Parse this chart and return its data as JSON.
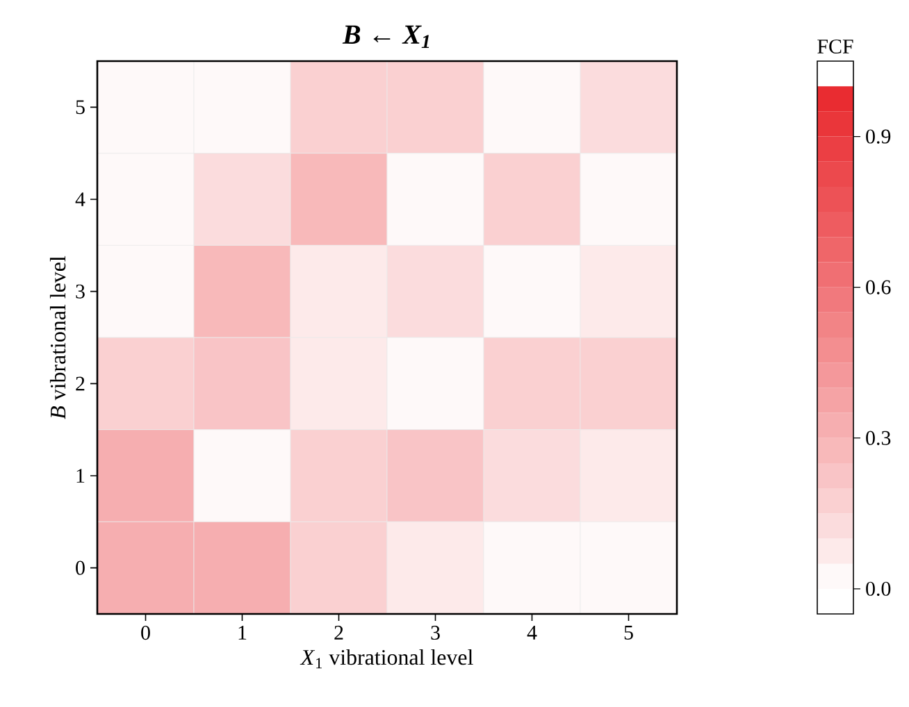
{
  "chart_data": {
    "type": "heatmap",
    "title": "B ← X$_{1}$",
    "xlabel": "*X*$_{1}$ vibrational level",
    "ylabel": "*B* vibrational level",
    "clabel": "FCF",
    "categories": [
      "0",
      "1",
      "2",
      "3",
      "4",
      "5"
    ],
    "y_categories": [
      "5",
      "4",
      "3",
      "2",
      "1",
      "0"
    ],
    "cells": [
      [
        0.02,
        0.02,
        0.15,
        0.15,
        0.02,
        0.12
      ],
      [
        0.02,
        0.12,
        0.25,
        0.0,
        0.15,
        0.02
      ],
      [
        0.02,
        0.25,
        0.05,
        0.12,
        0.01,
        0.05
      ],
      [
        0.15,
        0.2,
        0.05,
        0.01,
        0.15,
        0.15
      ],
      [
        0.3,
        0.01,
        0.15,
        0.2,
        0.12,
        0.05
      ],
      [
        0.3,
        0.3,
        0.15,
        0.05,
        0.02,
        0.02
      ]
    ],
    "clim": [
      0,
      1
    ],
    "cticks": [
      {
        "value": 0,
        "label": "0.0"
      },
      {
        "value": 0.3,
        "label": "0.3"
      },
      {
        "value": 0.6,
        "label": "0.6"
      },
      {
        "value": 0.9,
        "label": "0.9"
      }
    ]
  }
}
